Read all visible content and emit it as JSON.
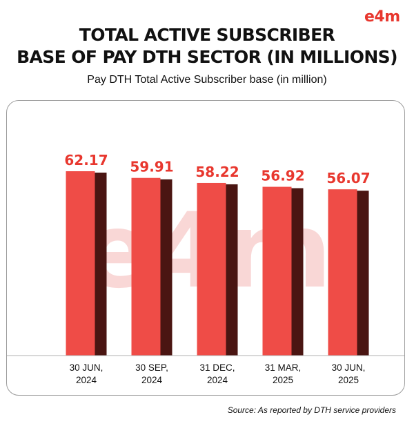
{
  "brand": {
    "logo_text": "e4m",
    "watermark_text": "e4m"
  },
  "title_lines": [
    "TOTAL ACTIVE SUBSCRIBER",
    "BASE OF PAY DTH SECTOR (IN MILLIONS)"
  ],
  "subtitle": "Pay DTH Total Active Subscriber base (in million)",
  "source": "Source: As reported by DTH service providers",
  "colors": {
    "bar_front": "#ef4c47",
    "bar_side": "#4a1512",
    "value_label": "#e8372e",
    "accent": "#e8372e"
  },
  "chart_data": {
    "type": "bar",
    "title": "Pay DTH Total Active Subscriber base (in million)",
    "categories": [
      [
        "30 JUN,",
        "2024"
      ],
      [
        "30 SEP,",
        "2024"
      ],
      [
        "31 DEC,",
        "2024"
      ],
      [
        "31 MAR,",
        "2025"
      ],
      [
        "30 JUN,",
        "2025"
      ]
    ],
    "values": [
      62.17,
      59.91,
      58.22,
      56.92,
      56.07
    ],
    "value_labels": [
      "62.17",
      "59.91",
      "58.22",
      "56.92",
      "56.07"
    ],
    "ylim": [
      0,
      62.17
    ],
    "grid": false,
    "legend": "none"
  }
}
